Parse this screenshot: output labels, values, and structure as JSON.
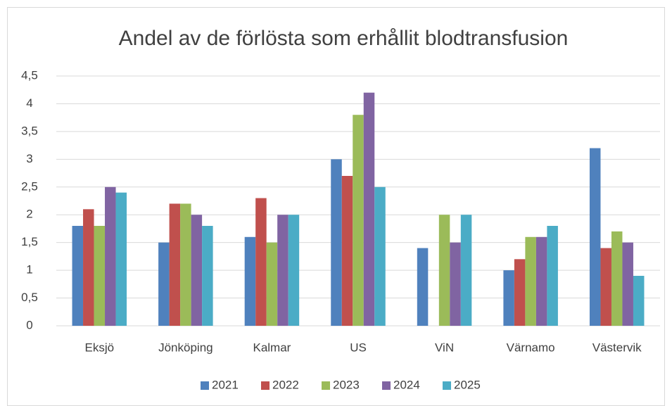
{
  "chart_data": {
    "type": "bar",
    "title": "Andel av de förlösta som erhållit blodtransfusion",
    "categories": [
      "Eksjö",
      "Jönköping",
      "Kalmar",
      "US",
      "ViN",
      "Värnamo",
      "Västervik"
    ],
    "series": [
      {
        "name": "2021",
        "color": "#4f81bd",
        "values": [
          1.8,
          1.5,
          1.6,
          3.0,
          1.4,
          1.0,
          3.2
        ]
      },
      {
        "name": "2022",
        "color": "#c0504d",
        "values": [
          2.1,
          2.2,
          2.3,
          2.7,
          null,
          1.2,
          1.4
        ]
      },
      {
        "name": "2023",
        "color": "#9bbb59",
        "values": [
          1.8,
          2.2,
          1.5,
          3.8,
          2.0,
          1.6,
          1.7
        ]
      },
      {
        "name": "2024",
        "color": "#8064a2",
        "values": [
          2.5,
          2.0,
          2.0,
          4.2,
          1.5,
          1.6,
          1.5
        ]
      },
      {
        "name": "2025",
        "color": "#4bacc6",
        "values": [
          2.4,
          1.8,
          2.0,
          2.5,
          2.0,
          1.8,
          0.9
        ]
      }
    ],
    "ylim": [
      0,
      4.5
    ],
    "yticks": [
      0,
      {
        "value": 0.5,
        "label": "0,5"
      },
      1,
      {
        "value": 1.5,
        "label": "1,5"
      },
      2,
      {
        "value": 2.5,
        "label": "2,5"
      },
      3,
      {
        "value": 3.5,
        "label": "3,5"
      },
      4,
      {
        "value": 4.5,
        "label": "4,5"
      }
    ],
    "grid": true,
    "legend": "bottom"
  }
}
